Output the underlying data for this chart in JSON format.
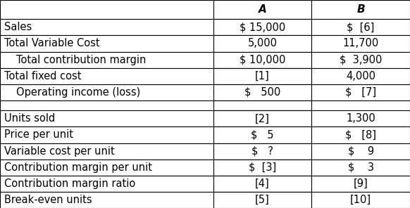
{
  "col_headers": [
    "",
    "A",
    "B"
  ],
  "rows": [
    {
      "label": "Sales",
      "indent": false,
      "a": "$ 15,000",
      "b": "$  [6]"
    },
    {
      "label": "Total Variable Cost",
      "indent": false,
      "a": "5,000",
      "b": "11,700"
    },
    {
      "label": "Total contribution margin",
      "indent": true,
      "a": "$ 10,000",
      "b": "$  3,900"
    },
    {
      "label": "Total fixed cost",
      "indent": false,
      "a": "[1]",
      "b": "4,000"
    },
    {
      "label": "Operating income (loss)",
      "indent": true,
      "a": "$   500",
      "b": "$   [7]"
    },
    {
      "label": "",
      "indent": false,
      "a": "",
      "b": ""
    },
    {
      "label": "Units sold",
      "indent": false,
      "a": "[2]",
      "b": "1,300"
    },
    {
      "label": "Price per unit",
      "indent": false,
      "a": "$   5",
      "b": "$   [8]"
    },
    {
      "label": "Variable cost per unit",
      "indent": false,
      "a": "$   ?",
      "b": "$    9"
    },
    {
      "label": "Contribution margin per unit",
      "indent": false,
      "a": "$  [3]",
      "b": "$    3"
    },
    {
      "label": "Contribution margin ratio",
      "indent": false,
      "a": "[4]",
      "b": "[9]"
    },
    {
      "label": "Break-even units",
      "indent": false,
      "a": "[5]",
      "b": "[10]"
    }
  ],
  "header_bg": "#ffffff",
  "row_bg": "#ffffff",
  "border_color": "#000000",
  "text_color": "#000000",
  "header_font_size": 11,
  "body_font_size": 10.5,
  "fig_width": 5.82,
  "fig_height": 2.96
}
